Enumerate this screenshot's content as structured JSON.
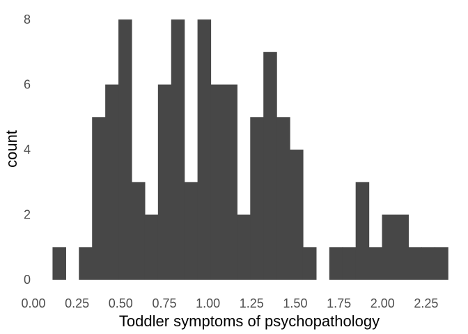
{
  "chart_data": {
    "type": "bar",
    "title": "",
    "xlabel": "Toddler symptoms of psychopathology",
    "ylabel": "count",
    "bin_width": 0.0755,
    "bin_start": 0.1095,
    "counts": [
      1,
      0,
      1,
      5,
      6,
      8,
      3,
      2,
      6,
      8,
      3,
      8,
      6,
      6,
      2,
      5,
      7,
      5,
      4,
      1,
      0,
      1,
      1,
      3,
      1,
      2,
      2,
      1,
      1,
      1
    ],
    "xlim": [
      0.0,
      2.37
    ],
    "ylim": [
      0,
      8.3
    ],
    "x_ticks": [
      0.0,
      0.25,
      0.5,
      0.75,
      1.0,
      1.25,
      1.5,
      1.75,
      2.0,
      2.25
    ],
    "x_tick_labels": [
      "0.00",
      "0.25",
      "0.50",
      "0.75",
      "1.00",
      "1.25",
      "1.50",
      "1.75",
      "2.00",
      "2.25"
    ],
    "y_ticks": [
      0,
      2,
      4,
      6,
      8
    ],
    "y_tick_labels": [
      "0",
      "2",
      "4",
      "6",
      "8"
    ],
    "grid": false,
    "bar_color": "#474747"
  }
}
